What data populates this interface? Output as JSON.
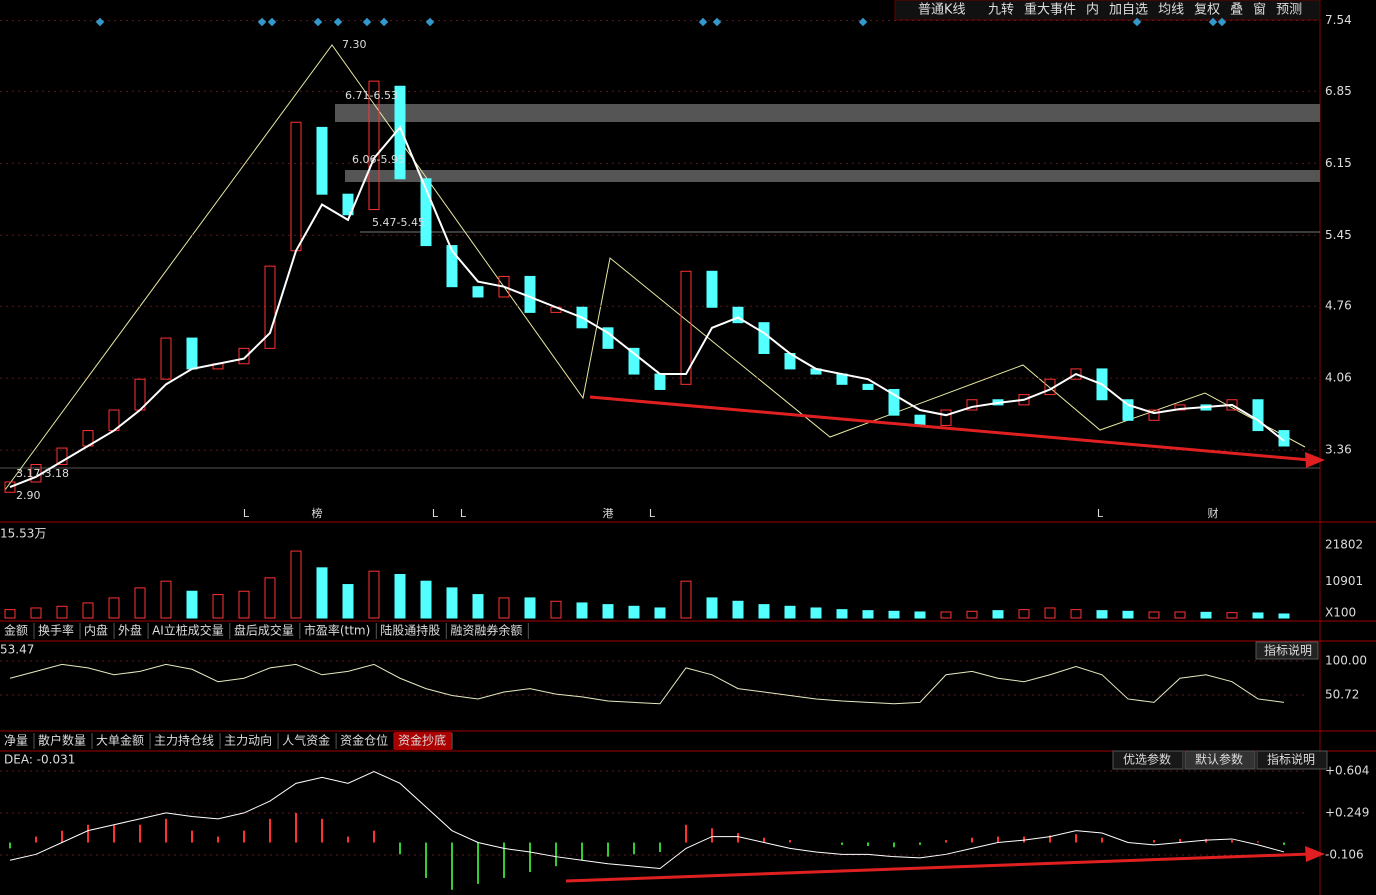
{
  "toolbar": [
    "普通K线",
    "九转",
    "重大事件",
    "内",
    "加自选",
    "均线",
    "复权",
    "叠",
    "窗",
    "预测"
  ],
  "price_panel": {
    "type": "candlestick",
    "ylim": [
      2.68,
      7.72
    ],
    "yticks": [
      7.54,
      6.85,
      6.15,
      5.45,
      4.76,
      4.06,
      3.36
    ],
    "annotations": [
      "7.30",
      "6.71-6.53",
      "6.06-5.95",
      "5.47-5.45",
      "3.17-3.18",
      "2.90"
    ],
    "events": [
      "L",
      "榜",
      "L",
      "L",
      "港",
      "L",
      "L",
      "财"
    ],
    "open": [
      2.95,
      3.05,
      3.22,
      3.4,
      3.55,
      3.75,
      4.05,
      4.45,
      4.15,
      4.2,
      4.35,
      5.3,
      6.5,
      5.85,
      5.7,
      6.9,
      6.0,
      5.35,
      4.95,
      4.85,
      5.05,
      4.7,
      4.75,
      4.55,
      4.35,
      4.1,
      4.0,
      5.1,
      4.75,
      4.6,
      4.3,
      4.15,
      4.1,
      4.0,
      3.95,
      3.7,
      3.6,
      3.75,
      3.85,
      3.8,
      3.9,
      4.05,
      4.15,
      3.85,
      3.65,
      3.75,
      3.8,
      3.75,
      3.85,
      3.55
    ],
    "close": [
      3.05,
      3.22,
      3.38,
      3.55,
      3.75,
      4.05,
      4.45,
      4.15,
      4.2,
      4.35,
      5.15,
      6.55,
      5.85,
      5.65,
      6.95,
      6.0,
      5.35,
      4.95,
      4.85,
      5.05,
      4.7,
      4.75,
      4.55,
      4.35,
      4.1,
      3.95,
      5.1,
      4.75,
      4.6,
      4.3,
      4.15,
      4.1,
      4.0,
      3.95,
      3.7,
      3.6,
      3.75,
      3.85,
      3.8,
      3.9,
      4.05,
      4.15,
      3.85,
      3.65,
      3.75,
      3.8,
      3.75,
      3.85,
      3.55,
      3.4
    ],
    "ma": [
      3.0,
      3.1,
      3.25,
      3.4,
      3.55,
      3.75,
      4.0,
      4.15,
      4.2,
      4.25,
      4.5,
      5.3,
      5.75,
      5.6,
      6.2,
      6.5,
      5.9,
      5.3,
      5.0,
      4.95,
      4.85,
      4.75,
      4.65,
      4.5,
      4.3,
      4.1,
      4.1,
      4.55,
      4.65,
      4.5,
      4.3,
      4.15,
      4.1,
      4.05,
      3.9,
      3.75,
      3.7,
      3.78,
      3.82,
      3.85,
      3.95,
      4.1,
      4.0,
      3.8,
      3.72,
      3.76,
      3.78,
      3.8,
      3.65,
      3.45
    ]
  },
  "volume_panel": {
    "label": "15.53万",
    "ylim": [
      0,
      27200
    ],
    "yticks": [
      21802,
      10901
    ],
    "unit": "X100",
    "values": [
      2500,
      3000,
      3500,
      4500,
      6000,
      9000,
      11000,
      8000,
      7000,
      8000,
      12000,
      20000,
      15000,
      10000,
      14000,
      13000,
      11000,
      9000,
      7000,
      6000,
      6000,
      5000,
      4500,
      4000,
      3500,
      3000,
      11000,
      6000,
      5000,
      4000,
      3500,
      3000,
      2500,
      2200,
      2000,
      1800,
      1800,
      2000,
      2200,
      2500,
      3000,
      2500,
      2200,
      2000,
      1800,
      1800,
      1700,
      1600,
      1500,
      1200
    ]
  },
  "tabs_1": [
    "金额",
    "换手率",
    "内盘",
    "外盘",
    "AI立桩成交量",
    "盘后成交量",
    "市盈率(ttm)",
    "陆股通持股",
    "融资融券余额"
  ],
  "indicator_panel": {
    "label": "53.47",
    "button": "指标说明",
    "ylim": [
      0,
      127.5
    ],
    "yticks": [
      {
        "value": 100,
        "label": "100.00"
      },
      50.72
    ],
    "values": [
      75,
      85,
      95,
      90,
      80,
      85,
      95,
      88,
      70,
      75,
      90,
      95,
      80,
      85,
      95,
      75,
      60,
      50,
      45,
      55,
      60,
      52,
      48,
      42,
      40,
      38,
      90,
      80,
      60,
      55,
      50,
      45,
      42,
      40,
      38,
      40,
      80,
      85,
      75,
      70,
      80,
      92,
      80,
      45,
      40,
      75,
      80,
      70,
      45,
      40
    ]
  },
  "tabs_2": [
    "净量",
    "散户数量",
    "大单金额",
    "主力持仓线",
    "主力动向",
    "人气资金",
    "资金仓位",
    "资金抄底"
  ],
  "macd_panel": {
    "label": "DEA: -0.031",
    "buttons": [
      "优选参数",
      "默认参数",
      "指标说明"
    ],
    "ylim": [
      -0.427,
      0.765
    ],
    "yticks": [
      {
        "value": 0.604,
        "label": "+0.604"
      },
      {
        "value": 0.249,
        "label": "+0.249"
      },
      -0.106
    ],
    "dif": [
      -0.15,
      -0.1,
      0,
      0.1,
      0.15,
      0.2,
      0.25,
      0.22,
      0.2,
      0.25,
      0.35,
      0.5,
      0.55,
      0.5,
      0.6,
      0.5,
      0.3,
      0.1,
      0,
      -0.05,
      -0.08,
      -0.12,
      -0.15,
      -0.18,
      -0.2,
      -0.22,
      -0.05,
      0.05,
      0.05,
      0,
      -0.05,
      -0.08,
      -0.1,
      -0.1,
      -0.12,
      -0.13,
      -0.1,
      -0.05,
      0,
      0.02,
      0.05,
      0.1,
      0.08,
      0,
      -0.02,
      0.0,
      0.02,
      0.03,
      -0.02,
      -0.08
    ],
    "bars": [
      -0.05,
      0.05,
      0.1,
      0.15,
      0.15,
      0.15,
      0.2,
      0.1,
      0.05,
      0.1,
      0.2,
      0.25,
      0.2,
      0.05,
      0.1,
      -0.1,
      -0.3,
      -0.4,
      -0.35,
      -0.3,
      -0.25,
      -0.2,
      -0.15,
      -0.12,
      -0.1,
      -0.08,
      0.15,
      0.12,
      0.08,
      0.04,
      0.02,
      0.0,
      -0.02,
      -0.03,
      -0.04,
      -0.02,
      0.02,
      0.04,
      0.05,
      0.05,
      0.06,
      0.07,
      0.04,
      0.0,
      0.02,
      0.03,
      0.03,
      0.02,
      0.01,
      -0.02
    ]
  }
}
